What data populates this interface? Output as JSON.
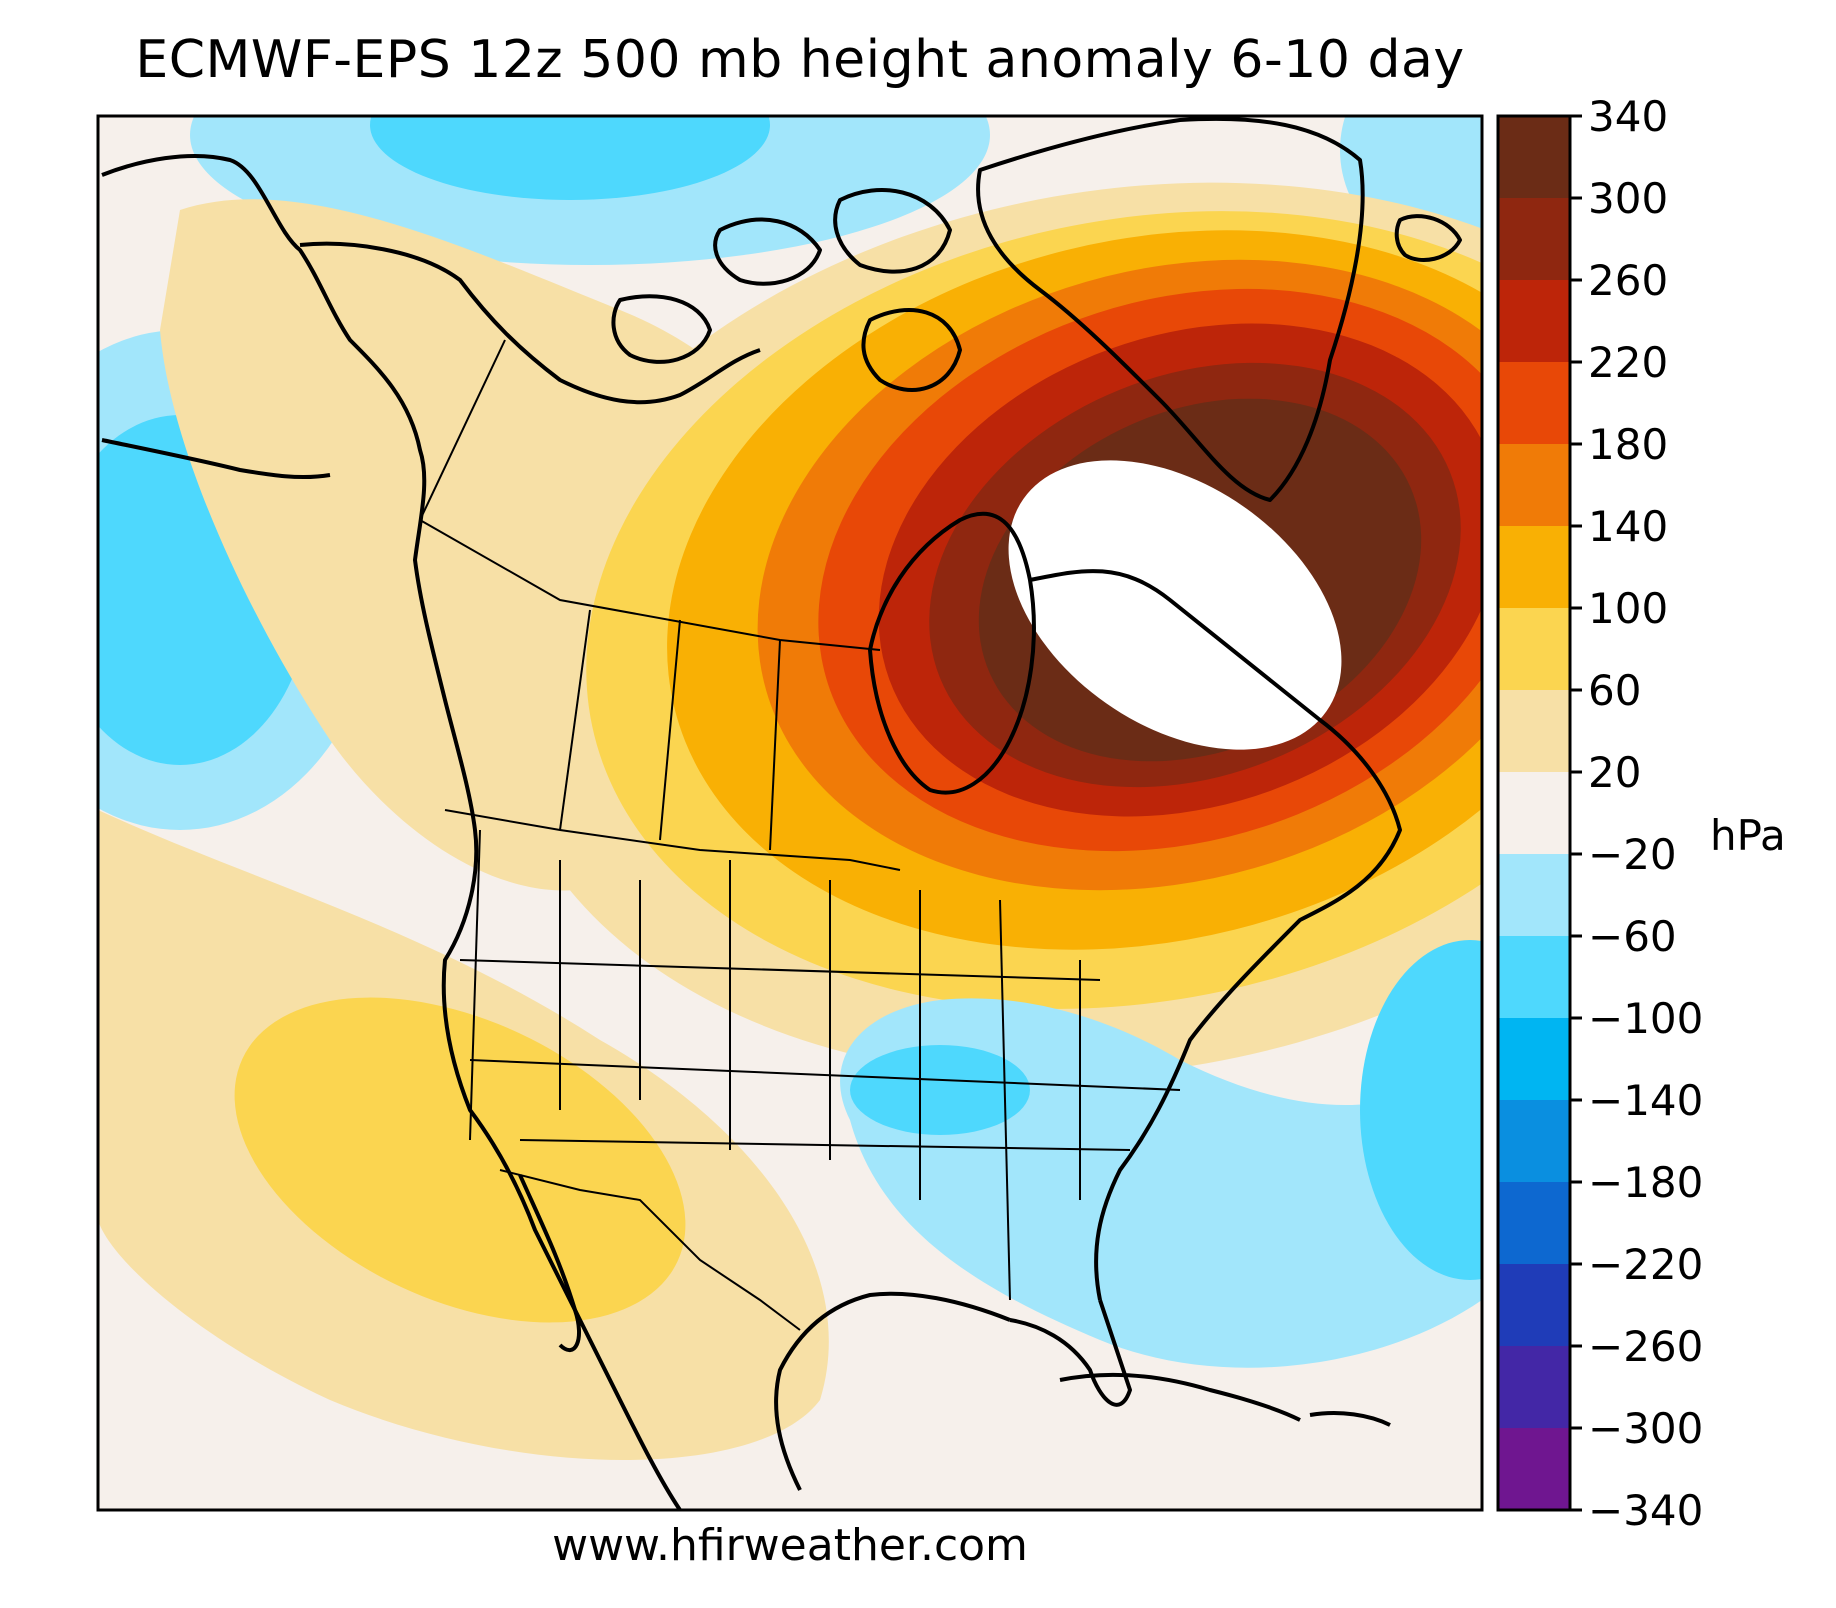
{
  "title": "ECMWF-EPS 12z 500 mb height anomaly 6-10 day",
  "source": "www.hfirweather.com",
  "colorbar": {
    "unit": "hPa",
    "ticks": [
      "340",
      "300",
      "260",
      "220",
      "180",
      "140",
      "100",
      "60",
      "20",
      "−20",
      "−60",
      "−100",
      "−140",
      "−180",
      "−220",
      "−260",
      "−300",
      "−340"
    ],
    "bands": [
      {
        "range": "300 to 340",
        "color": "#6b2c16"
      },
      {
        "range": "260 to 300",
        "color": "#8f2710"
      },
      {
        "range": "220 to 260",
        "color": "#bd2509"
      },
      {
        "range": "180 to 220",
        "color": "#e84807"
      },
      {
        "range": "140 to 180",
        "color": "#f07b07"
      },
      {
        "range": "100 to 140",
        "color": "#f9b004"
      },
      {
        "range": "60 to 100",
        "color": "#fbd550"
      },
      {
        "range": "20 to 60",
        "color": "#f7e0a6"
      },
      {
        "range": "-20 to 20",
        "color": "#f6f0eb"
      },
      {
        "range": "-60 to -20",
        "color": "#a2e6fb"
      },
      {
        "range": "-100 to -60",
        "color": "#4ed8fd"
      },
      {
        "range": "-140 to -100",
        "color": "#00b5f2"
      },
      {
        "range": "-180 to -140",
        "color": "#0a8fe0"
      },
      {
        "range": "-220 to -180",
        "color": "#0d68d0"
      },
      {
        "range": "-260 to -220",
        "color": "#1f3cb8"
      },
      {
        "range": "-300 to -260",
        "color": "#4327a6"
      },
      {
        "range": "-340 to -300",
        "color": "#6f1690"
      }
    ]
  }
}
